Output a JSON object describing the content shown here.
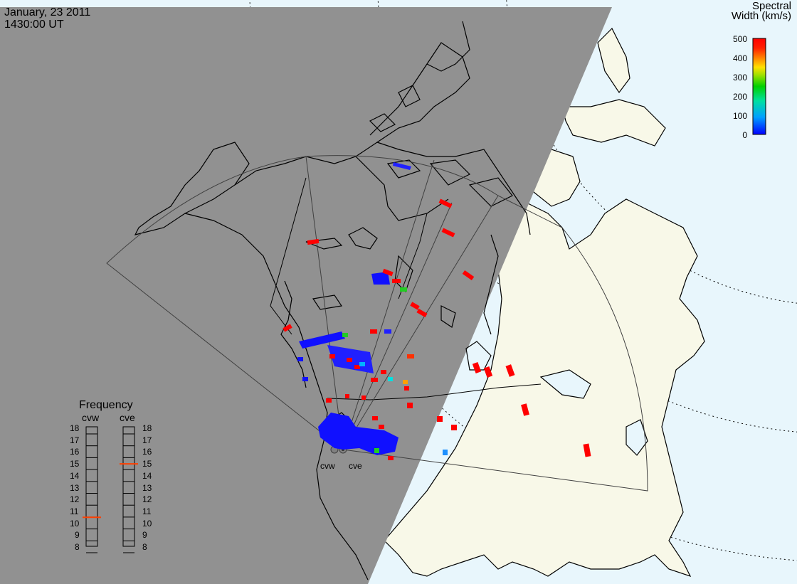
{
  "header": {
    "date": "January, 23 2011",
    "time": "1430:00 UT"
  },
  "colorbar": {
    "title_line1": "Spectral",
    "title_line2": "Width (km/s)",
    "ticks": [
      "500",
      "400",
      "300",
      "200",
      "100",
      "0"
    ],
    "colors": [
      "#0000ff",
      "#00b4ff",
      "#00ffa0",
      "#00e000",
      "#a0e000",
      "#ffe000",
      "#ffa000",
      "#ff4000",
      "#ff0000"
    ]
  },
  "frequency": {
    "title": "Frequency",
    "radar_a": "cvw",
    "radar_b": "cve",
    "ticks": [
      "18",
      "17",
      "16",
      "15",
      "14",
      "13",
      "12",
      "11",
      "10",
      "9",
      "8"
    ],
    "cvw_mhz": 10.5,
    "cve_mhz": 15.0,
    "marker_color": "#ff4000"
  },
  "radars": [
    {
      "name": "cvw"
    },
    {
      "name": "cve"
    }
  ],
  "map_colors": {
    "night": "#919191",
    "land_day": "#f8f8e8",
    "ocean_day": "#e8f6fc",
    "coast": "#000000",
    "fov": "#404040"
  }
}
